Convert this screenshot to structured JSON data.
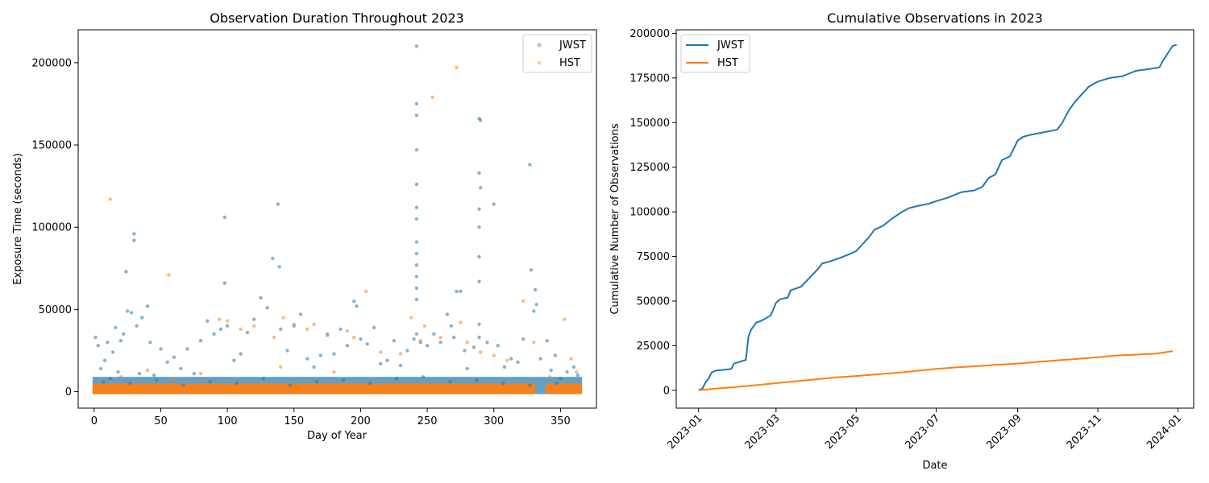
{
  "chart_data": [
    {
      "type": "scatter",
      "title": "Observation Duration Throughout 2023",
      "xlabel": "Day of Year",
      "ylabel": "Exposure Time (seconds)",
      "xlim": [
        -12,
        377
      ],
      "ylim": [
        -10000,
        220000
      ],
      "xticks": [
        0,
        50,
        100,
        150,
        200,
        250,
        300,
        350
      ],
      "yticks": [
        0,
        50000,
        100000,
        150000,
        200000
      ],
      "grid": false,
      "legend_position": "top-right",
      "series": [
        {
          "name": "JWST",
          "color": "#1f77b4",
          "points": [
            [
              1,
              33000
            ],
            [
              3,
              28000
            ],
            [
              5,
              14000
            ],
            [
              8,
              19000
            ],
            [
              10,
              30000
            ],
            [
              12,
              8000
            ],
            [
              14,
              24000
            ],
            [
              16,
              39000
            ],
            [
              18,
              12000
            ],
            [
              20,
              31000
            ],
            [
              22,
              35000
            ],
            [
              24,
              73000
            ],
            [
              25,
              49000
            ],
            [
              28,
              48000
            ],
            [
              30,
              96000
            ],
            [
              30,
              92000
            ],
            [
              32,
              40000
            ],
            [
              34,
              11000
            ],
            [
              36,
              45000
            ],
            [
              40,
              52000
            ],
            [
              42,
              30000
            ],
            [
              45,
              10000
            ],
            [
              50,
              26000
            ],
            [
              55,
              18000
            ],
            [
              60,
              21000
            ],
            [
              65,
              14000
            ],
            [
              70,
              26000
            ],
            [
              75,
              11000
            ],
            [
              80,
              31000
            ],
            [
              85,
              43000
            ],
            [
              90,
              35000
            ],
            [
              95,
              38000
            ],
            [
              98,
              106000
            ],
            [
              98,
              66000
            ],
            [
              100,
              40000
            ],
            [
              105,
              19000
            ],
            [
              110,
              23000
            ],
            [
              115,
              36000
            ],
            [
              120,
              44000
            ],
            [
              125,
              57000
            ],
            [
              130,
              51000
            ],
            [
              134,
              81000
            ],
            [
              138,
              114000
            ],
            [
              139,
              76000
            ],
            [
              140,
              38000
            ],
            [
              145,
              25000
            ],
            [
              150,
              40000
            ],
            [
              155,
              47000
            ],
            [
              160,
              20000
            ],
            [
              165,
              15000
            ],
            [
              170,
              22000
            ],
            [
              175,
              35000
            ],
            [
              180,
              23000
            ],
            [
              185,
              38000
            ],
            [
              190,
              28000
            ],
            [
              195,
              55000
            ],
            [
              197,
              52000
            ],
            [
              200,
              32000
            ],
            [
              205,
              29000
            ],
            [
              210,
              39000
            ],
            [
              215,
              17000
            ],
            [
              220,
              19000
            ],
            [
              225,
              31000
            ],
            [
              230,
              16000
            ],
            [
              235,
              25000
            ],
            [
              240,
              32000
            ],
            [
              242,
              210000
            ],
            [
              242,
              175000
            ],
            [
              242,
              168000
            ],
            [
              242,
              147000
            ],
            [
              242,
              126000
            ],
            [
              242,
              112000
            ],
            [
              242,
              105000
            ],
            [
              242,
              91000
            ],
            [
              242,
              84000
            ],
            [
              242,
              77000
            ],
            [
              242,
              70000
            ],
            [
              242,
              63000
            ],
            [
              242,
              56000
            ],
            [
              242,
              35000
            ],
            [
              245,
              30000
            ],
            [
              250,
              28000
            ],
            [
              255,
              35000
            ],
            [
              260,
              30000
            ],
            [
              265,
              47000
            ],
            [
              268,
              40000
            ],
            [
              270,
              33000
            ],
            [
              272,
              61000
            ],
            [
              275,
              61000
            ],
            [
              278,
              25000
            ],
            [
              280,
              14000
            ],
            [
              285,
              27000
            ],
            [
              289,
              166000
            ],
            [
              289,
              133000
            ],
            [
              289,
              111000
            ],
            [
              289,
              100000
            ],
            [
              289,
              82000
            ],
            [
              289,
              67000
            ],
            [
              289,
              41000
            ],
            [
              289,
              33000
            ],
            [
              290,
              124000
            ],
            [
              290,
              165000
            ],
            [
              295,
              30000
            ],
            [
              300,
              114000
            ],
            [
              303,
              28000
            ],
            [
              308,
              15000
            ],
            [
              313,
              20000
            ],
            [
              318,
              18000
            ],
            [
              322,
              32000
            ],
            [
              327,
              138000
            ],
            [
              328,
              74000
            ],
            [
              330,
              49000
            ],
            [
              331,
              62000
            ],
            [
              332,
              53000
            ],
            [
              335,
              20000
            ],
            [
              340,
              31000
            ],
            [
              343,
              13000
            ],
            [
              346,
              22000
            ],
            [
              350,
              8000
            ],
            [
              355,
              12000
            ],
            [
              360,
              15000
            ],
            [
              363,
              10000
            ],
            [
              7,
              6000
            ],
            [
              27,
              5000
            ],
            [
              47,
              7000
            ],
            [
              67,
              4000
            ],
            [
              87,
              6000
            ],
            [
              107,
              5000
            ],
            [
              127,
              8000
            ],
            [
              147,
              4000
            ],
            [
              167,
              6000
            ],
            [
              187,
              7000
            ],
            [
              207,
              5000
            ],
            [
              227,
              8000
            ],
            [
              247,
              9000
            ],
            [
              267,
              6000
            ],
            [
              287,
              7000
            ],
            [
              307,
              5000
            ],
            [
              327,
              4000
            ],
            [
              347,
              5000
            ]
          ]
        },
        {
          "name": "HST",
          "color": "#ff7f0e",
          "points": [
            [
              12,
              117000
            ],
            [
              56,
              71000
            ],
            [
              94,
              44000
            ],
            [
              100,
              43000
            ],
            [
              110,
              38000
            ],
            [
              120,
              40000
            ],
            [
              135,
              33000
            ],
            [
              142,
              45000
            ],
            [
              150,
              41000
            ],
            [
              160,
              38000
            ],
            [
              165,
              41000
            ],
            [
              175,
              34000
            ],
            [
              190,
              37000
            ],
            [
              195,
              33000
            ],
            [
              204,
              61000
            ],
            [
              215,
              24000
            ],
            [
              230,
              23000
            ],
            [
              238,
              45000
            ],
            [
              245,
              31000
            ],
            [
              248,
              40000
            ],
            [
              254,
              179000
            ],
            [
              260,
              33000
            ],
            [
              272,
              197000
            ],
            [
              275,
              42000
            ],
            [
              280,
              30000
            ],
            [
              290,
              24000
            ],
            [
              300,
              22000
            ],
            [
              310,
              19000
            ],
            [
              322,
              55000
            ],
            [
              330,
              30000
            ],
            [
              342,
              9000
            ],
            [
              353,
              44000
            ],
            [
              358,
              20000
            ],
            [
              362,
              12000
            ],
            [
              20,
              9000
            ],
            [
              40,
              13000
            ],
            [
              60,
              8000
            ],
            [
              80,
              11000
            ],
            [
              140,
              15000
            ],
            [
              180,
              12000
            ]
          ]
        }
      ],
      "baseline_bands": [
        {
          "series": "JWST",
          "x_range": [
            0,
            365
          ],
          "y_max": 9000
        },
        {
          "series": "HST",
          "x_range": [
            0,
            330
          ],
          "y_max": 5000
        },
        {
          "series": "HST",
          "x_range": [
            340,
            365
          ],
          "y_max": 5000
        }
      ]
    },
    {
      "type": "line",
      "title": "Cumulative Observations in 2023",
      "xlabel": "Date",
      "ylabel": "Cumulative Number of Observations",
      "x_type": "date",
      "xlim": [
        "2022-12-15",
        "2024-01-13"
      ],
      "ylim": [
        -10000,
        202000
      ],
      "xticks": [
        "2023-01-01",
        "2023-03-01",
        "2023-05-01",
        "2023-07-01",
        "2023-09-01",
        "2023-11-01",
        "2024-01-01"
      ],
      "xtick_labels": [
        "2023-01",
        "2023-03",
        "2023-05",
        "2023-07",
        "2023-09",
        "2023-11",
        "2024-01"
      ],
      "yticks": [
        0,
        25000,
        50000,
        75000,
        100000,
        125000,
        150000,
        175000,
        200000
      ],
      "grid": false,
      "legend_position": "top-left",
      "series": [
        {
          "name": "JWST",
          "color": "#1f77b4",
          "x": [
            "2023-01-01",
            "2023-01-04",
            "2023-01-06",
            "2023-01-09",
            "2023-01-11",
            "2023-01-14",
            "2023-01-21",
            "2023-01-26",
            "2023-01-28",
            "2023-02-06",
            "2023-02-08",
            "2023-02-10",
            "2023-02-14",
            "2023-02-18",
            "2023-02-25",
            "2023-03-01",
            "2023-03-04",
            "2023-03-10",
            "2023-03-12",
            "2023-03-20",
            "2023-04-02",
            "2023-04-05",
            "2023-04-10",
            "2023-04-18",
            "2023-04-25",
            "2023-05-01",
            "2023-05-06",
            "2023-05-11",
            "2023-05-15",
            "2023-05-21",
            "2023-05-28",
            "2023-06-05",
            "2023-06-10",
            "2023-06-18",
            "2023-06-25",
            "2023-07-01",
            "2023-07-10",
            "2023-07-20",
            "2023-07-30",
            "2023-08-05",
            "2023-08-10",
            "2023-08-15",
            "2023-08-20",
            "2023-08-26",
            "2023-09-01",
            "2023-09-05",
            "2023-09-10",
            "2023-09-20",
            "2023-10-01",
            "2023-10-05",
            "2023-10-10",
            "2023-10-15",
            "2023-10-20",
            "2023-10-25",
            "2023-11-01",
            "2023-11-10",
            "2023-11-20",
            "2023-11-30",
            "2023-12-10",
            "2023-12-18",
            "2023-12-20",
            "2023-12-28",
            "2023-12-31"
          ],
          "values": [
            0,
            1000,
            4000,
            7000,
            10000,
            11000,
            11500,
            12000,
            15000,
            17000,
            30000,
            34000,
            38000,
            39000,
            42000,
            49000,
            51000,
            52000,
            56000,
            58000,
            68000,
            71000,
            72000,
            74000,
            76000,
            78000,
            82000,
            86000,
            90000,
            92000,
            96000,
            100000,
            102000,
            103500,
            104500,
            106000,
            108000,
            111000,
            112000,
            114000,
            119000,
            121000,
            129000,
            131000,
            140000,
            142000,
            143000,
            144500,
            146000,
            150000,
            157000,
            162000,
            166000,
            170000,
            173000,
            175000,
            176000,
            179000,
            180000,
            181000,
            184000,
            193000,
            193500
          ]
        },
        {
          "name": "HST",
          "color": "#ff7f0e",
          "x": [
            "2023-01-01",
            "2023-01-15",
            "2023-02-01",
            "2023-02-15",
            "2023-03-01",
            "2023-03-15",
            "2023-04-01",
            "2023-04-15",
            "2023-05-01",
            "2023-05-15",
            "2023-06-01",
            "2023-06-15",
            "2023-07-01",
            "2023-07-15",
            "2023-08-01",
            "2023-08-15",
            "2023-09-01",
            "2023-09-15",
            "2023-10-01",
            "2023-10-15",
            "2023-11-01",
            "2023-11-15",
            "2023-12-01",
            "2023-12-15",
            "2023-12-28"
          ],
          "values": [
            0,
            1000,
            2000,
            3000,
            4000,
            5000,
            6200,
            7200,
            8000,
            8800,
            9800,
            10800,
            12000,
            12800,
            13500,
            14200,
            15000,
            15800,
            16800,
            17500,
            18500,
            19500,
            20000,
            20500,
            22000
          ]
        }
      ]
    }
  ]
}
